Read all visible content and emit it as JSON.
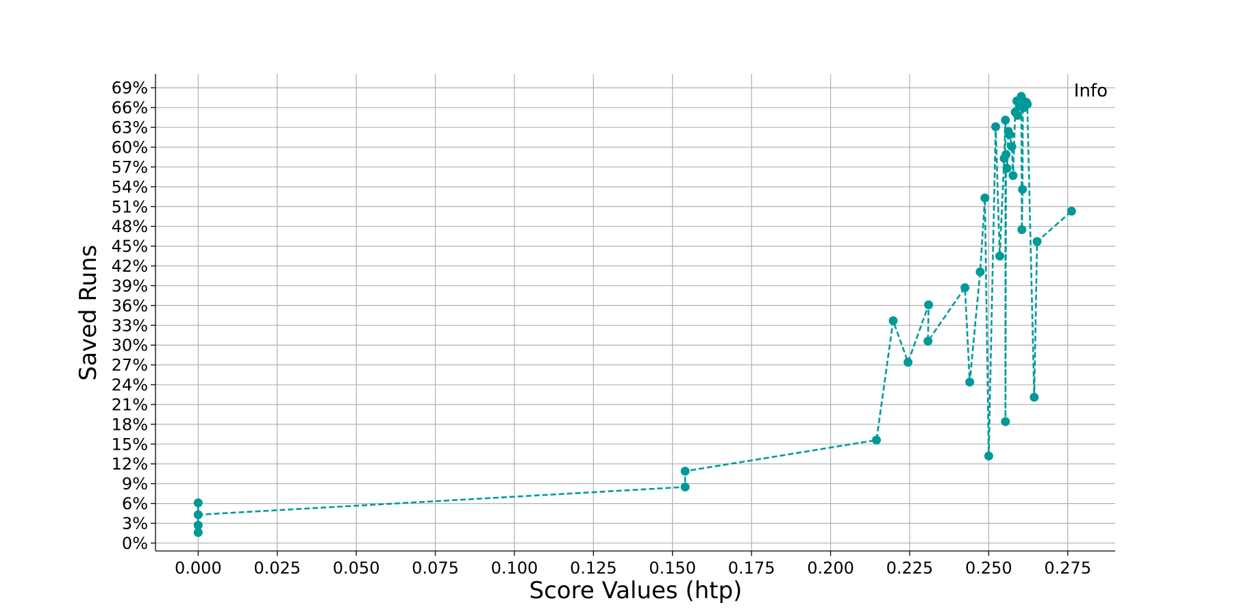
{
  "chart_data": {
    "type": "line",
    "title": "",
    "xlabel": "Score Values (htp)",
    "ylabel": "Saved Runs",
    "annotation": "Info",
    "xlim": [
      -0.0135,
      0.29
    ],
    "ylim": [
      -0.012,
      0.711
    ],
    "x_ticks": [
      0.0,
      0.025,
      0.05,
      0.075,
      0.1,
      0.125,
      0.15,
      0.175,
      0.2,
      0.225,
      0.25,
      0.275
    ],
    "x_tick_labels": [
      "0.000",
      "0.025",
      "0.050",
      "0.075",
      "0.100",
      "0.125",
      "0.150",
      "0.175",
      "0.200",
      "0.225",
      "0.250",
      "0.275"
    ],
    "y_ticks": [
      0.0,
      0.03,
      0.06,
      0.09,
      0.12,
      0.15,
      0.18,
      0.21,
      0.24,
      0.27,
      0.3,
      0.33,
      0.36,
      0.39,
      0.42,
      0.45,
      0.48,
      0.51,
      0.54,
      0.57,
      0.6,
      0.63,
      0.66,
      0.69
    ],
    "y_tick_labels": [
      "0%",
      "3%",
      "6%",
      "9%",
      "12%",
      "15%",
      "18%",
      "21%",
      "24%",
      "27%",
      "30%",
      "33%",
      "36%",
      "39%",
      "42%",
      "45%",
      "48%",
      "51%",
      "54%",
      "57%",
      "60%",
      "63%",
      "66%",
      "69%"
    ],
    "grid": true,
    "color": "#009999",
    "line_style": "dashed",
    "marker": "circle",
    "series": [
      {
        "x": [
          0.0,
          0.0,
          0.0,
          0.0,
          0.154,
          0.154,
          0.2145,
          0.2198,
          0.2245,
          0.231,
          0.2308,
          0.2425,
          0.244,
          0.2473,
          0.2488,
          0.25,
          0.2522,
          0.2535,
          0.2549,
          0.2553,
          0.2553,
          0.2555,
          0.2558,
          0.2562,
          0.2566,
          0.2573,
          0.2577,
          0.2584,
          0.2589,
          0.2592,
          0.2597,
          0.2603,
          0.2605,
          0.2607,
          0.2608,
          0.2612,
          0.2619,
          0.2622,
          0.2644,
          0.2653,
          0.2762
        ],
        "y": [
          0.016,
          0.027,
          0.061,
          0.043,
          0.085,
          0.109,
          0.156,
          0.337,
          0.274,
          0.361,
          0.306,
          0.387,
          0.244,
          0.411,
          0.523,
          0.132,
          0.631,
          0.435,
          0.583,
          0.641,
          0.184,
          0.589,
          0.568,
          0.624,
          0.619,
          0.601,
          0.557,
          0.653,
          0.67,
          0.648,
          0.662,
          0.677,
          0.475,
          0.536,
          0.671,
          0.66,
          0.668,
          0.665,
          0.221,
          0.457,
          0.503
        ]
      }
    ]
  }
}
